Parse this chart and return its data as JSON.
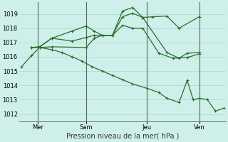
{
  "background_color": "#cff0ea",
  "grid_color": "#aaddda",
  "line_color": "#2a6e2a",
  "title": "Pression niveau de la mer( hPa )",
  "ylim": [
    1011.5,
    1019.8
  ],
  "yticks": [
    1012,
    1013,
    1014,
    1015,
    1016,
    1017,
    1018,
    1019
  ],
  "xlim": [
    -0.1,
    10.1
  ],
  "xtick_positions": [
    0.8,
    3.2,
    6.2,
    8.8
  ],
  "xtick_labels": [
    "Mer",
    "Sam",
    "Jeu",
    "Ven"
  ],
  "vline_positions": [
    0.8,
    3.2,
    6.2,
    8.8
  ],
  "series": [
    {
      "x": [
        0.0,
        0.5,
        0.9,
        1.5,
        3.2,
        3.6,
        4.0,
        4.5,
        5.0,
        5.5,
        6.0,
        6.8,
        7.5,
        8.2,
        8.8
      ],
      "y": [
        1015.3,
        1016.1,
        1016.65,
        1016.7,
        1016.65,
        1017.3,
        1017.5,
        1017.5,
        1018.2,
        1018.0,
        1018.0,
        1016.25,
        1015.9,
        1015.95,
        1016.2
      ]
    },
    {
      "x": [
        0.5,
        0.9,
        1.5,
        2.5,
        3.2,
        3.6,
        4.0,
        4.5,
        5.0,
        5.5,
        6.0,
        6.5,
        7.2,
        7.8,
        8.8
      ],
      "y": [
        1016.65,
        1016.7,
        1017.3,
        1017.8,
        1018.15,
        1017.8,
        1017.5,
        1017.5,
        1019.2,
        1019.45,
        1018.75,
        1018.8,
        1018.85,
        1018.0,
        1018.8
      ]
    },
    {
      "x": [
        0.5,
        0.9,
        1.5,
        2.5,
        3.2,
        3.6,
        4.0,
        4.5,
        5.0,
        5.5,
        6.0,
        7.2,
        7.8,
        8.2,
        8.8
      ],
      "y": [
        1016.65,
        1016.7,
        1017.3,
        1017.1,
        1017.35,
        1017.5,
        1017.5,
        1017.5,
        1018.8,
        1019.05,
        1018.75,
        1016.3,
        1015.9,
        1016.25,
        1016.3
      ]
    },
    {
      "x": [
        0.5,
        0.9,
        1.5,
        2.0,
        2.5,
        3.0,
        3.5,
        4.0,
        4.5,
        5.0,
        5.5,
        6.2,
        6.8,
        7.2,
        7.8,
        8.2,
        8.5,
        8.8,
        9.2,
        9.6,
        10.0
      ],
      "y": [
        1016.65,
        1016.65,
        1016.5,
        1016.3,
        1016.0,
        1015.7,
        1015.3,
        1015.0,
        1014.7,
        1014.4,
        1014.1,
        1013.8,
        1013.5,
        1013.1,
        1012.8,
        1014.35,
        1013.0,
        1013.1,
        1013.0,
        1012.2,
        1012.4
      ]
    }
  ]
}
